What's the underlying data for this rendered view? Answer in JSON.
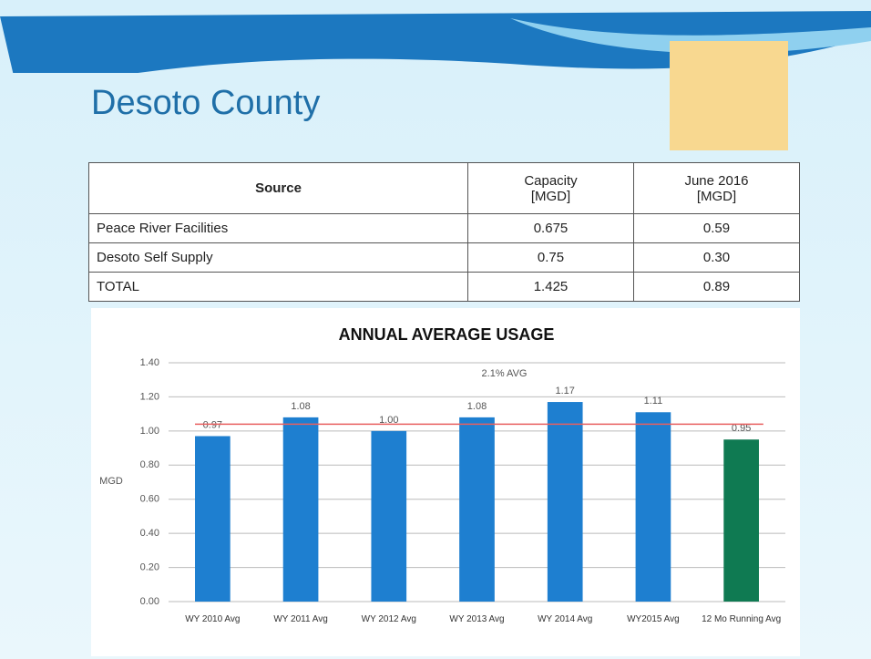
{
  "title": "Desoto County",
  "table": {
    "header": [
      "Source",
      "Capacity [MGD]",
      "June 2016 [MGD]"
    ],
    "rows": [
      [
        "Peace River Facilities",
        "0.675",
        "0.59"
      ],
      [
        "Desoto Self Supply",
        "0.75",
        "0.30"
      ],
      [
        "TOTAL",
        "1.425",
        "0.89"
      ]
    ]
  },
  "chart_data": {
    "type": "bar",
    "title": "ANNUAL AVERAGE USAGE",
    "y_label": "MGD",
    "categories": [
      "WY 2010 Avg",
      "WY 2011 Avg",
      "WY 2012 Avg",
      "WY 2013 Avg",
      "WY 2014 Avg",
      "WY2015 Avg",
      "12 Mo Running Avg"
    ],
    "values": [
      0.97,
      1.08,
      1.0,
      1.08,
      1.17,
      1.11,
      0.95
    ],
    "value_labels": [
      "0.97",
      "1.08",
      "1.00",
      "1.08",
      "1.17",
      "1.11",
      "0.95"
    ],
    "colors": [
      "#1e7fd0",
      "#1e7fd0",
      "#1e7fd0",
      "#1e7fd0",
      "#1e7fd0",
      "#1e7fd0",
      "#0f7a52"
    ],
    "ylim": [
      0,
      1.4
    ],
    "yticks": [
      {
        "value": 0,
        "label": "0.00"
      },
      {
        "value": 0.2,
        "label": "0.20"
      },
      {
        "value": 0.4,
        "label": "0.40"
      },
      {
        "value": 0.6,
        "label": "0.60"
      },
      {
        "value": 0.8,
        "label": "0.80"
      },
      {
        "value": 1.0,
        "label": "1.00"
      },
      {
        "value": 1.2,
        "label": "1.20"
      },
      {
        "value": 1.4,
        "label": "1.40"
      }
    ],
    "grid": true,
    "reference_line": {
      "label": "2.1% AVG",
      "value": 1.04,
      "color": "#e86060"
    }
  }
}
